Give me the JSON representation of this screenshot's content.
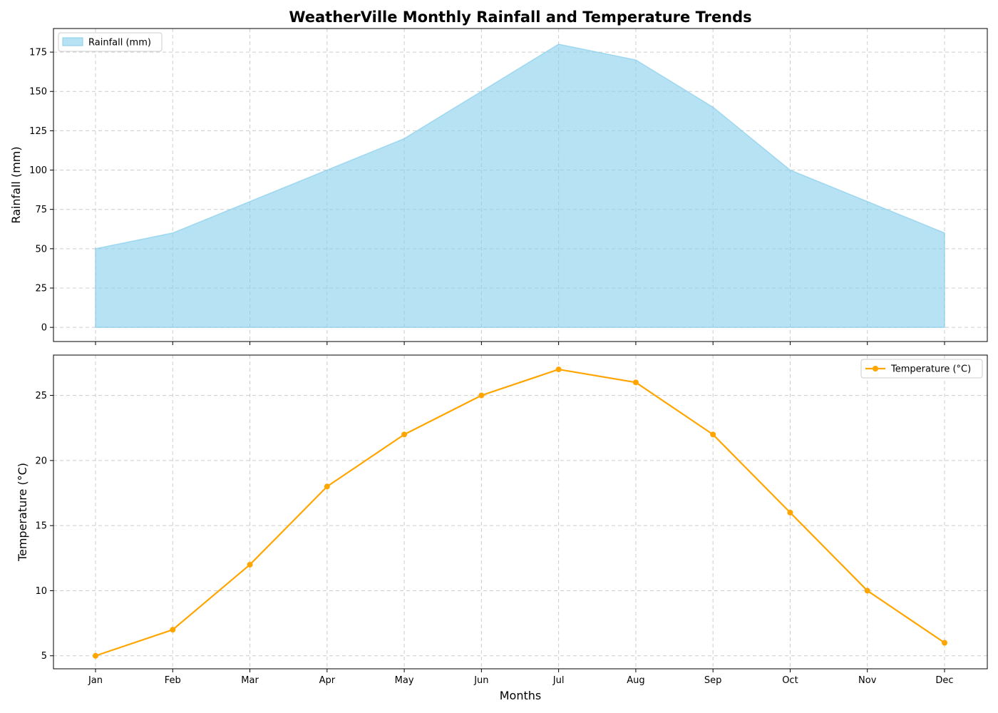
{
  "title": "WeatherVille Monthly Rainfall and Temperature Trends",
  "chart_data": [
    {
      "type": "area",
      "categories": [
        "Jan",
        "Feb",
        "Mar",
        "Apr",
        "May",
        "Jun",
        "Jul",
        "Aug",
        "Sep",
        "Oct",
        "Nov",
        "Dec"
      ],
      "series": [
        {
          "name": "Rainfall (mm)",
          "values": [
            50,
            60,
            80,
            100,
            120,
            150,
            180,
            170,
            140,
            100,
            80,
            60
          ],
          "color": "#87ceeb"
        }
      ],
      "xlabel": "",
      "ylabel": "Rainfall (mm)",
      "ylim": [
        -9,
        190
      ],
      "yticks": [
        0,
        25,
        50,
        75,
        100,
        125,
        150,
        175
      ],
      "grid": true,
      "legend": "upper-left",
      "show_xtick_labels": false
    },
    {
      "type": "line",
      "categories": [
        "Jan",
        "Feb",
        "Mar",
        "Apr",
        "May",
        "Jun",
        "Jul",
        "Aug",
        "Sep",
        "Oct",
        "Nov",
        "Dec"
      ],
      "series": [
        {
          "name": "Temperature (°C)",
          "values": [
            5,
            7,
            12,
            18,
            22,
            25,
            27,
            26,
            22,
            16,
            10,
            6
          ],
          "color": "#ffa500",
          "marker": "circle"
        }
      ],
      "xlabel": "Months",
      "ylabel": "Temperature (°C)",
      "ylim": [
        4.0,
        28.1
      ],
      "yticks": [
        5,
        10,
        15,
        20,
        25
      ],
      "grid": true,
      "legend": "upper-right",
      "show_xtick_labels": true
    }
  ]
}
